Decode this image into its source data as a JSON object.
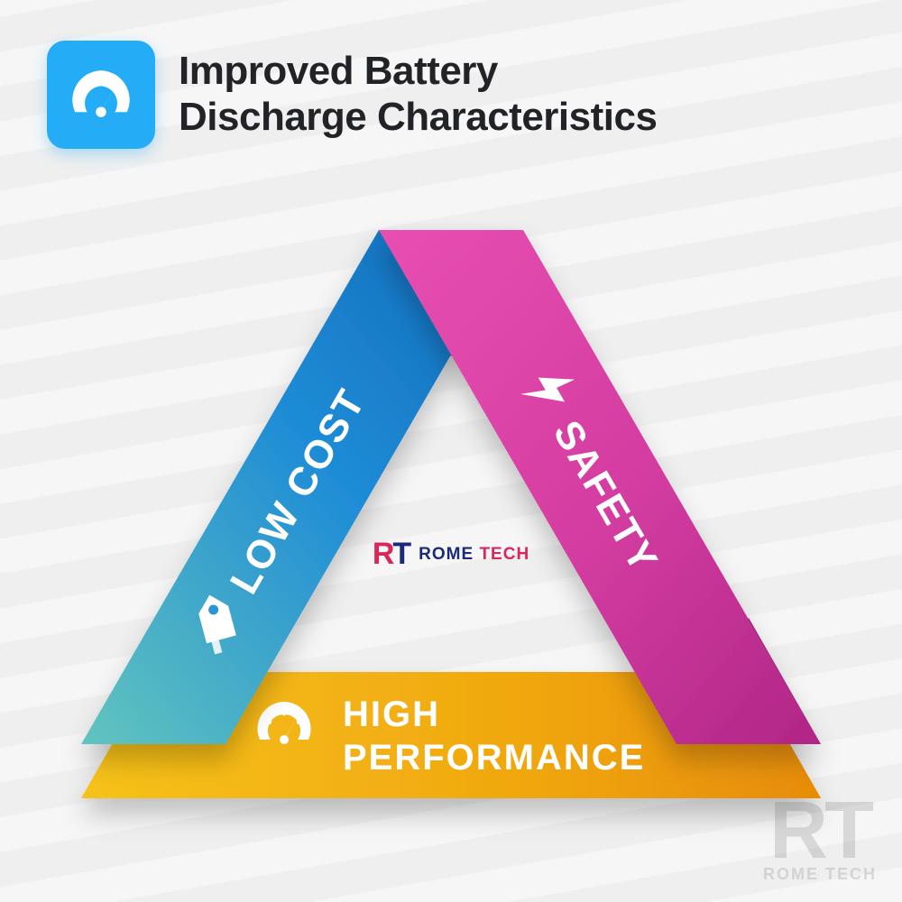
{
  "header": {
    "title": "Improved Battery\nDischarge Characteristics",
    "icon_bg": "#24adf6",
    "icon_name": "gauge-icon"
  },
  "triangle": {
    "type": "infographic",
    "center_logo": {
      "rt": "RT",
      "name": "ROME",
      "name2": "TECH"
    },
    "bands": [
      {
        "key": "low_cost",
        "label": "LOW COST",
        "icon": "tag-icon",
        "gradient": [
          "#62c4be",
          "#1f8cd6",
          "#1169b8"
        ],
        "shadow": "#0d4f86"
      },
      {
        "key": "safety",
        "label": "SAFETY",
        "icon": "bolt-icon",
        "gradient": [
          "#e84fb1",
          "#d33ca0",
          "#b02686"
        ],
        "shadow": "#8a1d6c"
      },
      {
        "key": "high_performance",
        "label": "HIGH",
        "label2": "PERFORMANCE",
        "icon": "gauge-icon",
        "gradient": [
          "#f6c21a",
          "#f0a70f",
          "#e78c06"
        ],
        "shadow": "#bf7204"
      }
    ],
    "band_text_color": "#ffffff",
    "band_font_size": 44,
    "band_font_weight": 800
  },
  "watermark": {
    "rt": "RT",
    "sub": "ROME TECH"
  },
  "colors": {
    "background_stripe_a": "#f6f6f7",
    "background_stripe_b": "#efefef",
    "heading_text": "#222326"
  }
}
